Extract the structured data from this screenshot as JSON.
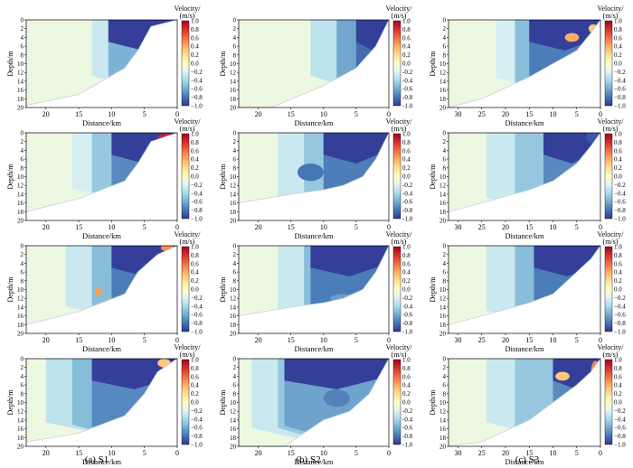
{
  "columns": [
    {
      "label": "(a) S1",
      "xmax": 23,
      "xticks": [
        20,
        15,
        10,
        5,
        0
      ]
    },
    {
      "label": "(b) S2",
      "xmax": 23,
      "xticks": [
        20,
        15,
        10,
        5,
        0
      ]
    },
    {
      "label": "(c) S3",
      "xmax": 32,
      "xticks": [
        30,
        25,
        20,
        15,
        10,
        5,
        0
      ]
    }
  ],
  "chart_data": {
    "type": "heatmap",
    "xlabel": "Distance/km",
    "ylabel": "Depth/m",
    "colorbar_label": [
      "Velocity/",
      "(m/s)"
    ],
    "yticks": [
      0,
      2,
      4,
      6,
      8,
      10,
      12,
      14,
      16,
      18,
      20
    ],
    "ylim": [
      20,
      0
    ],
    "colorbar_ticks": [
      "1.0",
      "0.8",
      "0.6",
      "0.4",
      "0.2",
      "0.0",
      "−0.2",
      "−0.4",
      "−0.6",
      "−0.8",
      "−1.0"
    ],
    "colorbar_ticks_alt": [
      "1.0",
      "0.8",
      "0.6",
      "0.4",
      "0.2",
      "0.0",
      "-0.2",
      "-0.4",
      "-0.6",
      "-0.8",
      "-1.0"
    ],
    "clim": [
      -1.0,
      1.0
    ],
    "colormap": [
      "#313695",
      "#4575b4",
      "#74add1",
      "#abd9e9",
      "#e0f3f8",
      "#ffffbf",
      "#fee090",
      "#fdae61",
      "#f46d43",
      "#d73027",
      "#a50026"
    ]
  },
  "panels": [
    {
      "col": 0,
      "row": 0,
      "bottom": [
        [
          23,
          19.5
        ],
        [
          15,
          17
        ],
        [
          8,
          11
        ],
        [
          6,
          7
        ],
        [
          4,
          1.5
        ],
        [
          0,
          0
        ]
      ],
      "cut": 10.5,
      "zones": [
        [
          13,
          -0.3,
          0
        ],
        [
          10.5,
          -0.6,
          0.3
        ]
      ],
      "patches": [
        [
          3.5,
          2.5,
          0.7,
          0.8,
          0.55
        ]
      ]
    },
    {
      "col": 0,
      "row": 1,
      "bottom": [
        [
          23,
          18
        ],
        [
          15,
          15
        ],
        [
          8,
          11
        ],
        [
          6,
          7
        ],
        [
          4,
          2
        ],
        [
          0,
          0
        ]
      ],
      "cut": 10,
      "zones": [
        [
          16,
          -0.25,
          0
        ],
        [
          13,
          -0.5,
          0.15
        ],
        [
          10,
          -0.75,
          0.35
        ]
      ],
      "patches": [
        [
          1.5,
          1.2,
          1.5,
          1,
          0.85
        ]
      ]
    },
    {
      "col": 0,
      "row": 2,
      "bottom": [
        [
          23,
          18
        ],
        [
          15,
          15
        ],
        [
          8,
          11
        ],
        [
          6,
          6
        ],
        [
          3,
          2
        ],
        [
          0,
          0
        ]
      ],
      "cut": 10,
      "zones": [
        [
          17,
          -0.3,
          0.2
        ],
        [
          13,
          -0.55,
          0.4
        ],
        [
          10,
          -0.8,
          0.5
        ]
      ],
      "patches": [
        [
          12,
          10.5,
          0.5,
          1,
          0.45
        ],
        [
          1.5,
          0.5,
          1,
          0.8,
          0.5
        ]
      ]
    },
    {
      "col": 0,
      "row": 3,
      "bottom": [
        [
          23,
          19
        ],
        [
          15,
          17
        ],
        [
          8,
          13
        ],
        [
          5,
          8
        ],
        [
          3,
          3
        ],
        [
          0,
          0
        ]
      ],
      "cut": 13,
      "zones": [
        [
          20,
          -0.35,
          0.35
        ],
        [
          16,
          -0.55,
          0.45
        ],
        [
          13,
          -0.75,
          0.55
        ]
      ],
      "patches": [
        [
          2,
          1,
          1,
          1,
          0.3
        ]
      ]
    },
    {
      "col": 1,
      "row": 0,
      "bottom": [
        [
          23,
          20
        ],
        [
          18,
          20
        ],
        [
          10,
          15
        ],
        [
          5,
          11
        ],
        [
          2,
          6
        ],
        [
          0,
          0
        ]
      ],
      "cut": 5,
      "zones": [
        [
          12,
          -0.35,
          0
        ],
        [
          8,
          -0.65,
          0.2
        ],
        [
          5,
          -0.85,
          0.45
        ]
      ],
      "patches": []
    },
    {
      "col": 1,
      "row": 1,
      "bottom": [
        [
          23,
          16
        ],
        [
          15,
          14
        ],
        [
          10,
          13
        ],
        [
          7,
          12
        ],
        [
          4,
          10
        ],
        [
          2,
          6
        ],
        [
          0,
          0
        ]
      ],
      "cut": 10,
      "zones": [
        [
          17,
          -0.3,
          0.4
        ],
        [
          13,
          -0.5,
          0.6
        ],
        [
          10,
          -0.8,
          0.4
        ]
      ],
      "patches": [
        [
          12,
          9,
          2,
          2,
          -0.8
        ]
      ]
    },
    {
      "col": 1,
      "row": 2,
      "bottom": [
        [
          23,
          16
        ],
        [
          15,
          14
        ],
        [
          10,
          13
        ],
        [
          7,
          12
        ],
        [
          4,
          10
        ],
        [
          2,
          6
        ],
        [
          0,
          0
        ]
      ],
      "cut": 12,
      "zones": [
        [
          17,
          -0.3,
          0.4
        ],
        [
          13,
          -0.55,
          0.55
        ],
        [
          12,
          -0.8,
          0.5
        ]
      ],
      "patches": [
        [
          7,
          12,
          2,
          1,
          -0.65
        ]
      ]
    },
    {
      "col": 1,
      "row": 3,
      "bottom": [
        [
          23,
          20
        ],
        [
          16,
          20
        ],
        [
          10,
          14
        ],
        [
          6,
          12
        ],
        [
          3,
          8
        ],
        [
          0,
          0
        ]
      ],
      "cut": 16,
      "zones": [
        [
          21,
          -0.3,
          0.6
        ],
        [
          17,
          -0.5,
          0.6
        ],
        [
          16,
          -0.65,
          0.5
        ]
      ],
      "patches": [
        [
          8,
          9,
          2,
          2,
          -0.75
        ]
      ]
    },
    {
      "col": 2,
      "row": 0,
      "bottom": [
        [
          32,
          20
        ],
        [
          25,
          18
        ],
        [
          15,
          13
        ],
        [
          10,
          10
        ],
        [
          5,
          7
        ],
        [
          2,
          3
        ],
        [
          0,
          0
        ]
      ],
      "cut": 15,
      "zones": [
        [
          22,
          -0.25,
          0.1
        ],
        [
          18,
          -0.55,
          0.3
        ],
        [
          15,
          -0.8,
          0.45
        ]
      ],
      "patches": [
        [
          6,
          4,
          1.5,
          1,
          0.4
        ],
        [
          1.5,
          2,
          1,
          1,
          0.3
        ]
      ]
    },
    {
      "col": 2,
      "row": 1,
      "bottom": [
        [
          32,
          18
        ],
        [
          25,
          16
        ],
        [
          15,
          13
        ],
        [
          10,
          11
        ],
        [
          5,
          7
        ],
        [
          2,
          3
        ],
        [
          0,
          0
        ]
      ],
      "cut": 12,
      "zones": [
        [
          24,
          -0.3,
          0.4
        ],
        [
          18,
          -0.5,
          0.55
        ],
        [
          12,
          -0.75,
          0.5
        ]
      ],
      "patches": [
        [
          1.5,
          1,
          1.5,
          1.5,
          -0.9
        ]
      ]
    },
    {
      "col": 2,
      "row": 2,
      "bottom": [
        [
          32,
          18
        ],
        [
          25,
          16
        ],
        [
          15,
          13
        ],
        [
          10,
          11
        ],
        [
          5,
          6
        ],
        [
          2,
          3
        ],
        [
          0,
          0
        ]
      ],
      "cut": 14,
      "zones": [
        [
          24,
          -0.3,
          0.4
        ],
        [
          18,
          -0.55,
          0.55
        ],
        [
          14,
          -0.8,
          0.5
        ]
      ],
      "patches": [
        [
          2,
          5,
          1,
          1.5,
          0.55
        ]
      ]
    },
    {
      "col": 2,
      "row": 3,
      "bottom": [
        [
          32,
          20
        ],
        [
          25,
          19
        ],
        [
          15,
          14
        ],
        [
          10,
          10
        ],
        [
          5,
          6
        ],
        [
          2,
          3
        ],
        [
          0,
          0
        ]
      ],
      "cut": 10,
      "zones": [
        [
          24,
          -0.3,
          0.35
        ],
        [
          18,
          -0.5,
          0.5
        ],
        [
          10,
          -0.75,
          0.55
        ]
      ],
      "patches": [
        [
          8,
          4,
          1.5,
          1,
          0.3
        ],
        [
          1,
          3,
          1,
          2.5,
          0.5
        ]
      ]
    }
  ]
}
